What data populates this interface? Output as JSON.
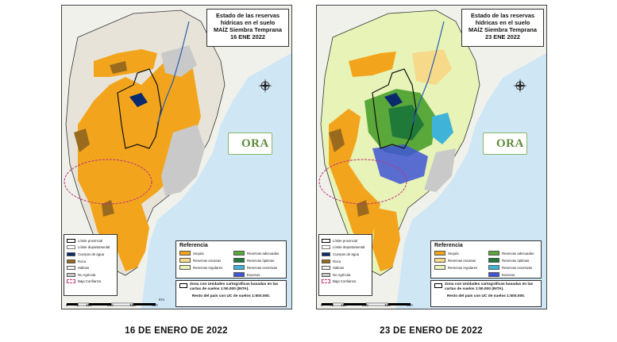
{
  "panels": [
    {
      "title_line1": "Estado de las reservas",
      "title_line2": "hídricas en el suelo",
      "title_line3": "MAÍZ Siembra Temprana",
      "date": "16 ENE 2022",
      "caption": "16 DE ENERO DE 2022"
    },
    {
      "title_line1": "Estado de las reservas",
      "title_line2": "hídricas en el suelo",
      "title_line3": "MAÍZ Siembra Temprana",
      "date": "23 ENE 2022",
      "caption": "23 DE ENERO DE 2022"
    }
  ],
  "logo_text": "ORA",
  "legend_left": [
    {
      "label": "Límite provincial",
      "color": "#ffffff"
    },
    {
      "label": "Límite departamental",
      "color": "#ffffff"
    },
    {
      "label": "Cuerpos de agua",
      "color": "#0a2a6e"
    },
    {
      "label": "Roca",
      "color": "#9a6b1e"
    },
    {
      "label": "Salinas",
      "color": "#f3f3f3"
    },
    {
      "label": "No Agrícola",
      "color": "#c9c9c9"
    },
    {
      "label": "Baja Confianza",
      "color": "#ffffff"
    }
  ],
  "reference": {
    "title": "Referencia",
    "items": [
      {
        "label": "Sequía",
        "color": "#f2a51c"
      },
      {
        "label": "Reservas adecuadas",
        "color": "#5aa83a"
      },
      {
        "label": "Reservas escasas",
        "color": "#f7d98a"
      },
      {
        "label": "Reservas óptimas",
        "color": "#1f7a3a"
      },
      {
        "label": "Reservas regulares",
        "color": "#e7f3b7"
      },
      {
        "label": "Reservas excesivas",
        "color": "#3fb4d8"
      },
      {
        "label": "",
        "color": ""
      },
      {
        "label": "Excesos",
        "color": "#4055d6"
      }
    ]
  },
  "note": {
    "text": "Zona con Unidades cartográficas basadas en las cartas de suelos 1:50.000 (INTA).",
    "footer": "Resto del país con UC de suelos 1:500.000."
  },
  "scale": {
    "ticks": [
      "0",
      "75",
      "150",
      "300",
      "450",
      "600"
    ],
    "unit": "Km"
  },
  "colors": {
    "sequia": "#f2a51c",
    "roca": "#9a6b1e",
    "no_agricola": "#c9c9c9",
    "agua": "#0a2a6e",
    "mar": "#cfe6f5",
    "tierra_exterior": "#f1f1ec"
  }
}
